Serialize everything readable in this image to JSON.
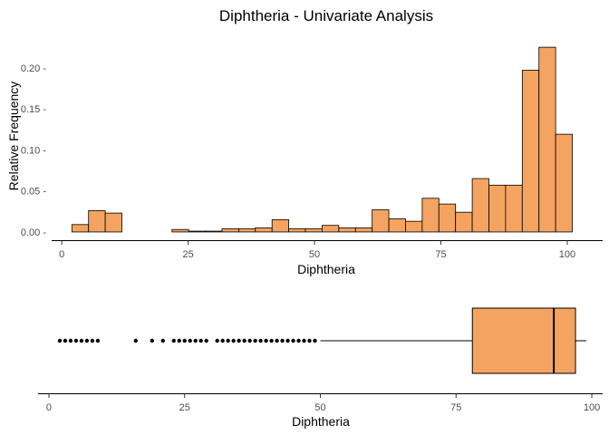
{
  "chart_data": [
    {
      "type": "histogram",
      "title": "Diphtheria - Univariate Analysis",
      "xlabel": "Diphtheria",
      "ylabel": "Relative Frequency",
      "xlim": [
        -2,
        107
      ],
      "ylim": [
        -0.01,
        0.245
      ],
      "xticks": [
        0,
        25,
        50,
        75,
        100
      ],
      "xtick_labels": [
        "0",
        "25",
        "50",
        "75",
        "100"
      ],
      "yticks": [
        0.0,
        0.05,
        0.1,
        0.15,
        0.2
      ],
      "ytick_labels": [
        "0.00 -",
        "0.05 -",
        "0.10 -",
        "0.15 -",
        "0.20 -"
      ],
      "bin_width": 3.3,
      "bin_start": 2,
      "bar_color": "#F4A460",
      "bar_edge": "#000000",
      "values": [
        0.009,
        0.026,
        0.023,
        0.0,
        0.0,
        0.0,
        0.003,
        0.001,
        0.001,
        0.004,
        0.004,
        0.005,
        0.015,
        0.004,
        0.004,
        0.008,
        0.005,
        0.005,
        0.027,
        0.016,
        0.013,
        0.041,
        0.034,
        0.024,
        0.065,
        0.057,
        0.057,
        0.197,
        0.225,
        0.119
      ],
      "grid": false
    },
    {
      "type": "boxplot",
      "xlabel": "Diphtheria",
      "xlim": [
        -2,
        102
      ],
      "xticks": [
        0,
        25,
        50,
        75,
        100
      ],
      "xtick_labels": [
        "0",
        "25",
        "50",
        "75",
        "100"
      ],
      "box_color": "#F4A460",
      "q1": 78,
      "median": 93,
      "q3": 97,
      "whisker_low": 50,
      "whisker_high": 99,
      "outliers": [
        2,
        3,
        4,
        5,
        6,
        7,
        8,
        9,
        16,
        19,
        21,
        23,
        24,
        25,
        26,
        27,
        28,
        29,
        31,
        32,
        33,
        34,
        35,
        36,
        37,
        38,
        39,
        40,
        41,
        42,
        43,
        44,
        45,
        46,
        47,
        48,
        49
      ],
      "grid": false
    }
  ]
}
